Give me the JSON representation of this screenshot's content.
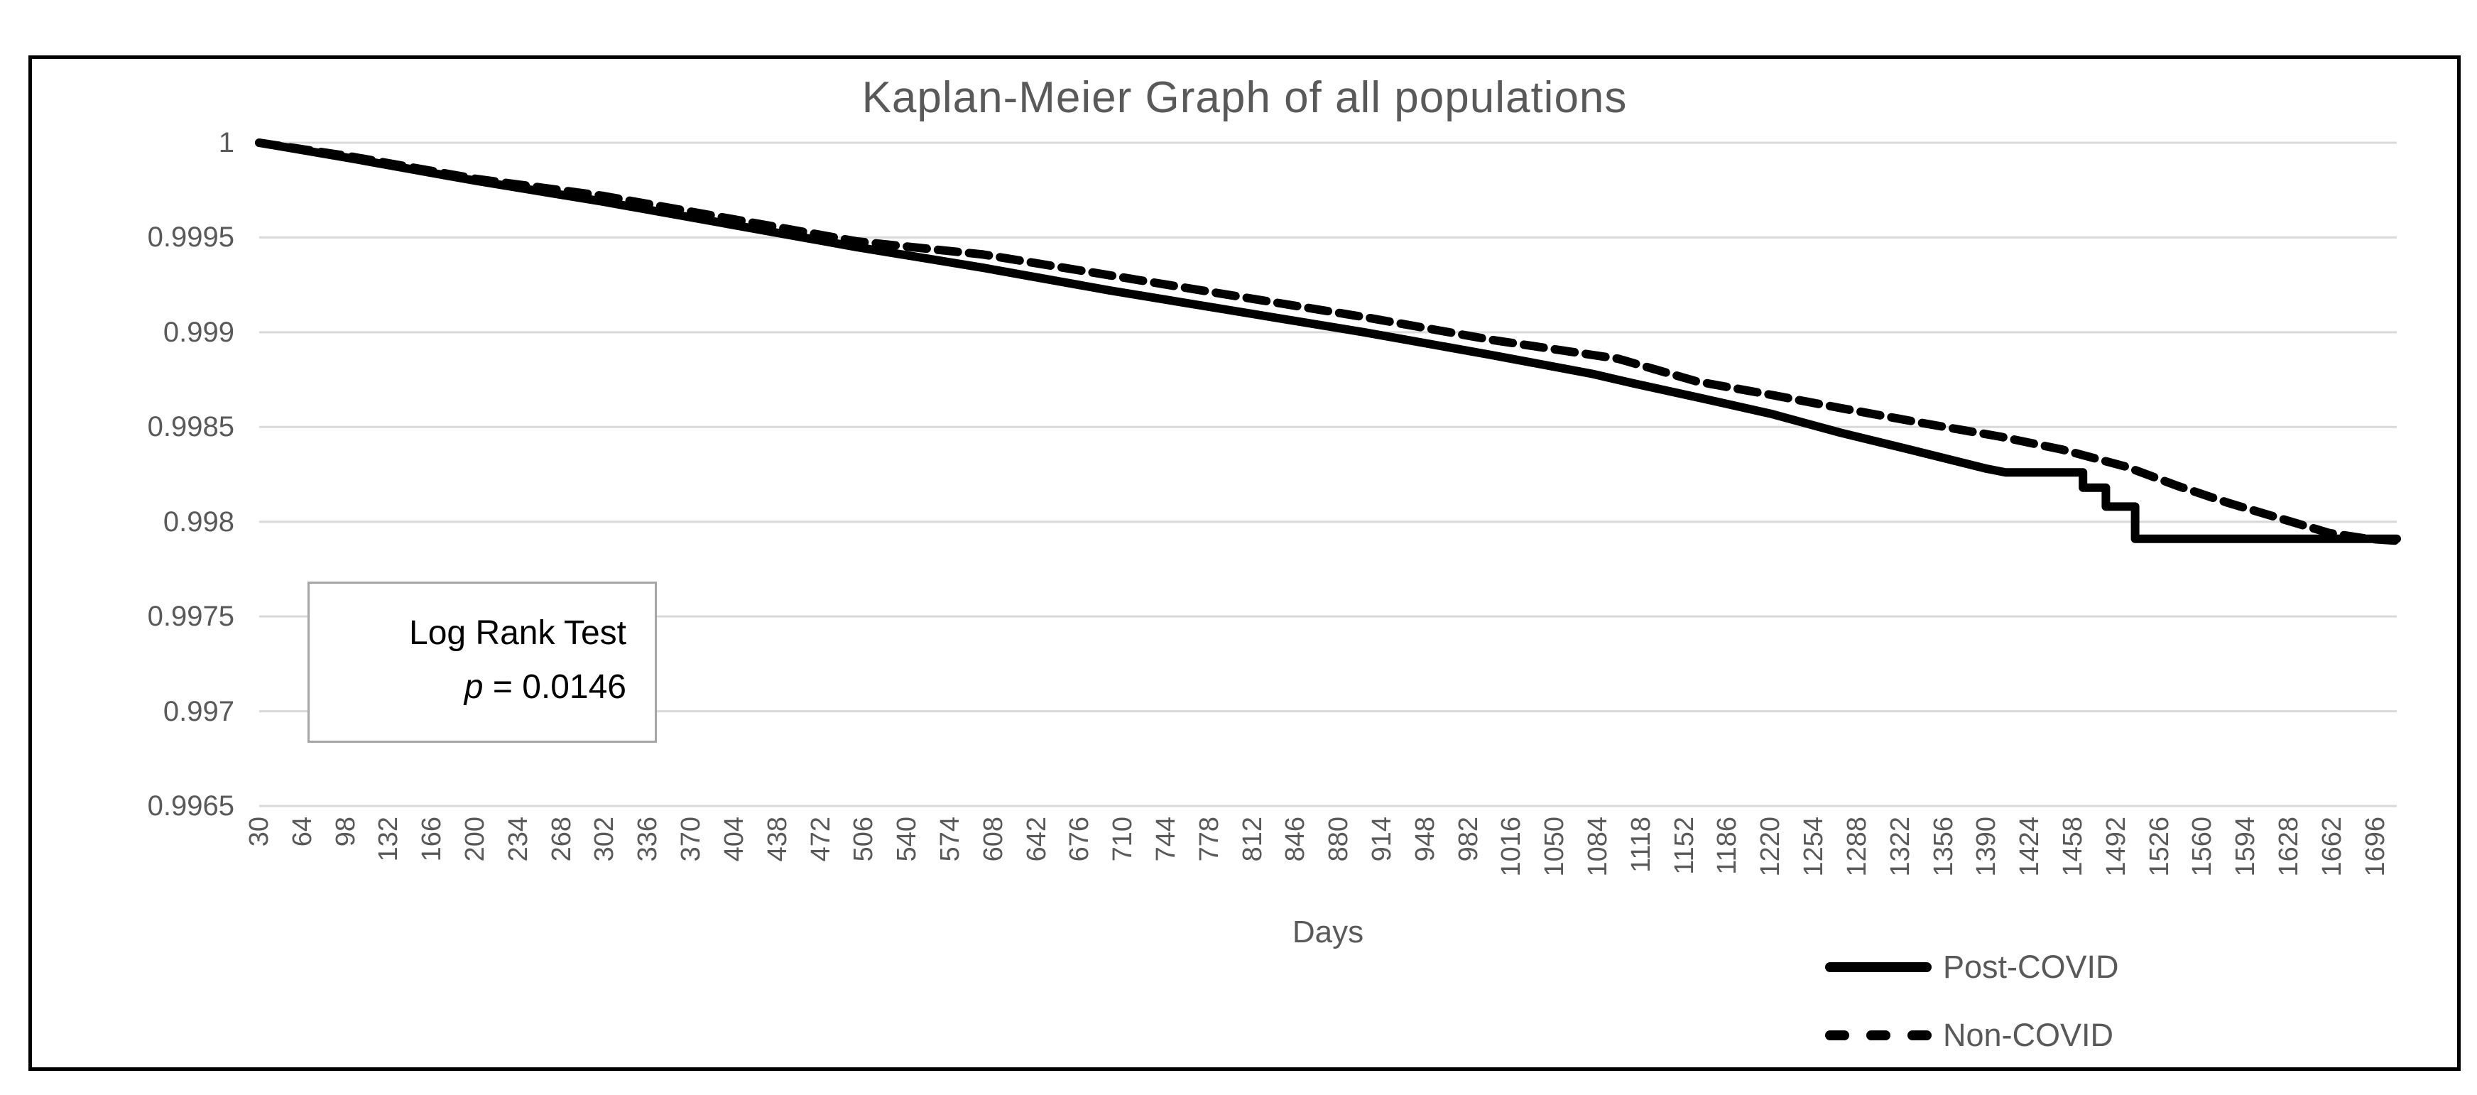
{
  "figure": {
    "title": "Kaplan-Meier Graph of all populations",
    "x_axis_title": "Days",
    "annotation": {
      "line1": "Log Rank Test",
      "p_symbol": "p",
      "p_rest": " = 0.0146"
    },
    "colors": {
      "series": "#000000",
      "gridline": "#d9d9d9",
      "axis_text": "#595959",
      "annotation_border": "#a6a6a6",
      "frame_border": "#000000"
    }
  },
  "chart_data": {
    "type": "line",
    "title": "Kaplan-Meier Graph of all populations",
    "xlabel": "Days",
    "ylabel": "",
    "ylim": [
      0.9965,
      1.0
    ],
    "yticks": [
      1,
      0.9995,
      0.999,
      0.9985,
      0.998,
      0.9975,
      0.997,
      0.9965
    ],
    "ytick_labels": [
      "1",
      "0.9995",
      "0.999",
      "0.9985",
      "0.998",
      "0.9975",
      "0.997",
      "0.9965"
    ],
    "xticks": [
      30,
      64,
      98,
      132,
      166,
      200,
      234,
      268,
      302,
      336,
      370,
      404,
      438,
      472,
      506,
      540,
      574,
      608,
      642,
      676,
      710,
      744,
      778,
      812,
      846,
      880,
      914,
      948,
      982,
      1016,
      1050,
      1084,
      1118,
      1152,
      1186,
      1220,
      1254,
      1288,
      1322,
      1356,
      1390,
      1424,
      1458,
      1492,
      1526,
      1560,
      1594,
      1628,
      1662,
      1696
    ],
    "grid": "horizontal",
    "legend_position": "bottom-right",
    "annotation_text": "Log Rank Test p = 0.0146",
    "series": [
      {
        "name": "Post-COVID",
        "line": "solid",
        "color": "#000000",
        "points": [
          [
            30,
            1.0
          ],
          [
            100,
            0.99992
          ],
          [
            200,
            0.9998
          ],
          [
            300,
            0.99969
          ],
          [
            400,
            0.99957
          ],
          [
            500,
            0.99945
          ],
          [
            600,
            0.99934
          ],
          [
            700,
            0.99922
          ],
          [
            800,
            0.99911
          ],
          [
            900,
            0.999
          ],
          [
            1000,
            0.99888
          ],
          [
            1080,
            0.99878
          ],
          [
            1112,
            0.99873
          ],
          [
            1160,
            0.99866
          ],
          [
            1220,
            0.99857
          ],
          [
            1275,
            0.99847
          ],
          [
            1330,
            0.99838
          ],
          [
            1390,
            0.99828
          ],
          [
            1405,
            0.99826
          ],
          [
            1466,
            0.99826
          ],
          [
            1466,
            0.99818
          ],
          [
            1484,
            0.99818
          ],
          [
            1484,
            0.99808
          ],
          [
            1507,
            0.99808
          ],
          [
            1507,
            0.99791
          ],
          [
            1713,
            0.99791
          ]
        ]
      },
      {
        "name": "Non-COVID",
        "line": "dashed",
        "color": "#000000",
        "points": [
          [
            30,
            1.0
          ],
          [
            100,
            0.99993
          ],
          [
            200,
            0.99981
          ],
          [
            300,
            0.99972
          ],
          [
            400,
            0.9996
          ],
          [
            500,
            0.99948
          ],
          [
            600,
            0.99941
          ],
          [
            700,
            0.9993
          ],
          [
            800,
            0.99919
          ],
          [
            900,
            0.99908
          ],
          [
            1000,
            0.99896
          ],
          [
            1100,
            0.99886
          ],
          [
            1162,
            0.99874
          ],
          [
            1220,
            0.99867
          ],
          [
            1275,
            0.9986
          ],
          [
            1340,
            0.99852
          ],
          [
            1400,
            0.99845
          ],
          [
            1450,
            0.99838
          ],
          [
            1500,
            0.99829
          ],
          [
            1540,
            0.99819
          ],
          [
            1580,
            0.9981
          ],
          [
            1620,
            0.99802
          ],
          [
            1660,
            0.99794
          ],
          [
            1690,
            0.99791
          ],
          [
            1713,
            0.9979
          ]
        ]
      }
    ]
  }
}
